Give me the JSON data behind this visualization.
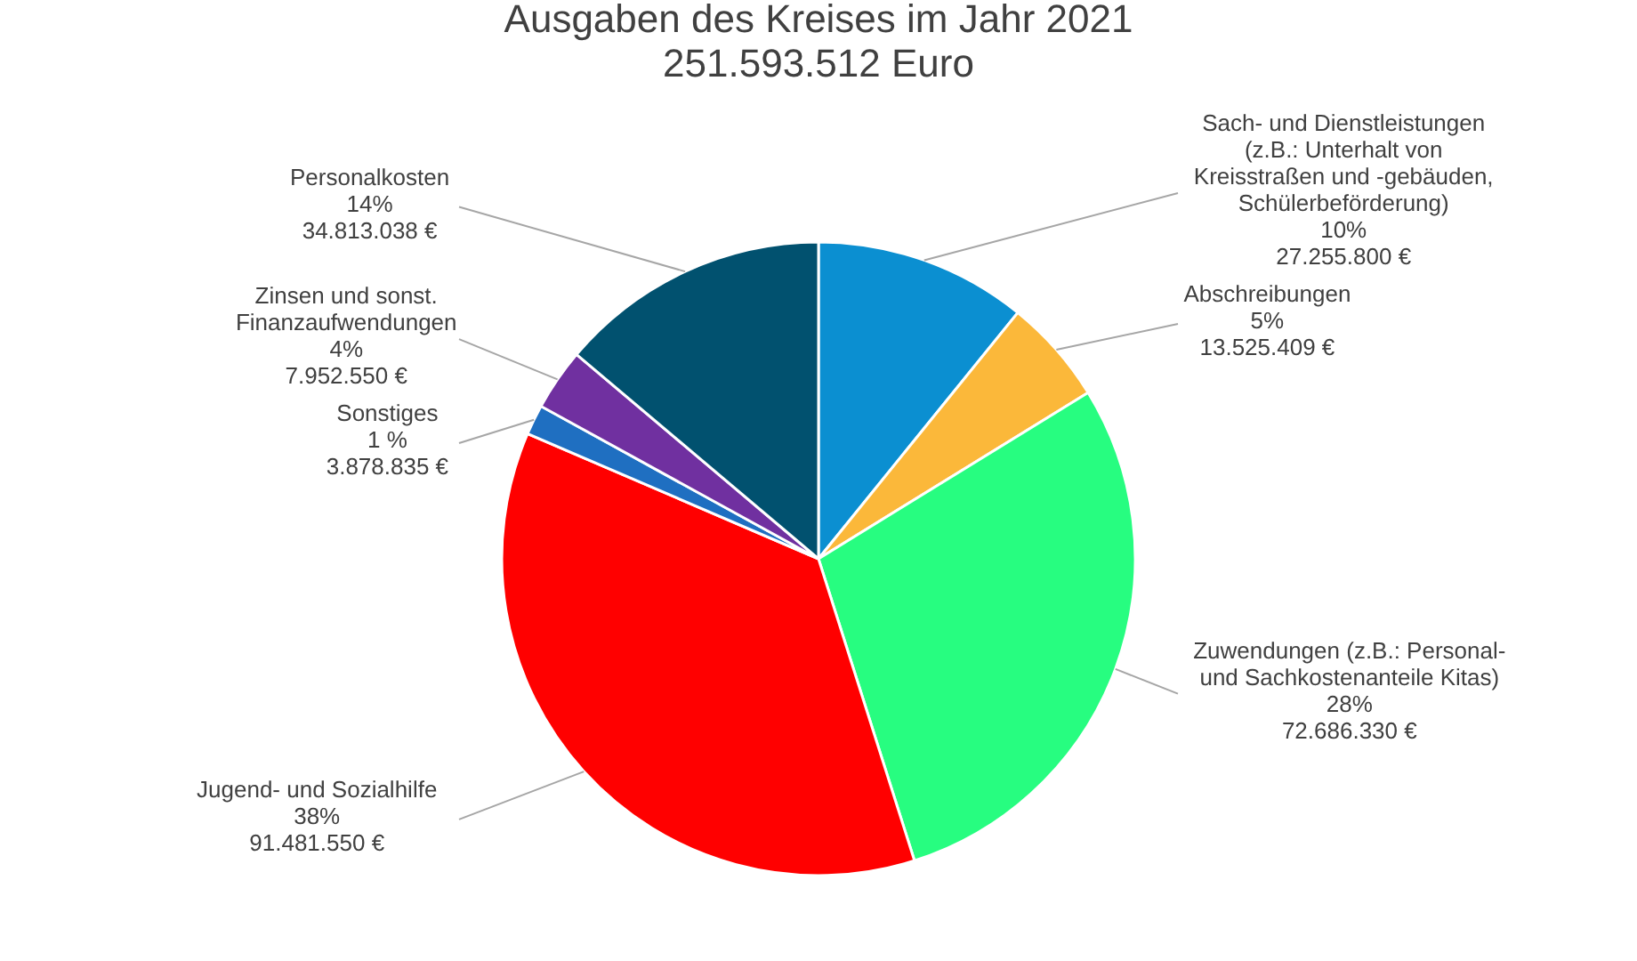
{
  "chart_data": {
    "type": "pie",
    "title": "Ausgaben des Kreises im Jahr 2021",
    "subtitle": "251.593.512 Euro",
    "categories": [
      "Sach- und Dienstleistungen\n(z.B.: Unterhalt von\nKreisstraßen und -gebäuden,\nSchülerbeförderung)",
      "Abschreibungen",
      "Zuwendungen (z.B.: Personal-\nund Sachkostenanteile Kitas)",
      "Jugend- und Sozialhilfe",
      "Sonstiges",
      "Zinsen und sonst.\nFinanzaufwendungen",
      "Personalkosten"
    ],
    "values": [
      27255800,
      13525409,
      72686330,
      91481550,
      3878835,
      7952550,
      34813038
    ],
    "value_labels": [
      "10%\n27.255.800 €",
      "5%\n13.525.409 €",
      "28%\n72.686.330 €",
      "38%\n91.481.550 €",
      "1 %\n3.878.835 €",
      "4%\n7.952.550 €",
      "14%\n34.813.038 €"
    ],
    "colors": [
      "#0b8fd1",
      "#fbb83a",
      "#27fd80",
      "#ff0000",
      "#1f6fc1",
      "#7030a0",
      "#01516f"
    ]
  }
}
